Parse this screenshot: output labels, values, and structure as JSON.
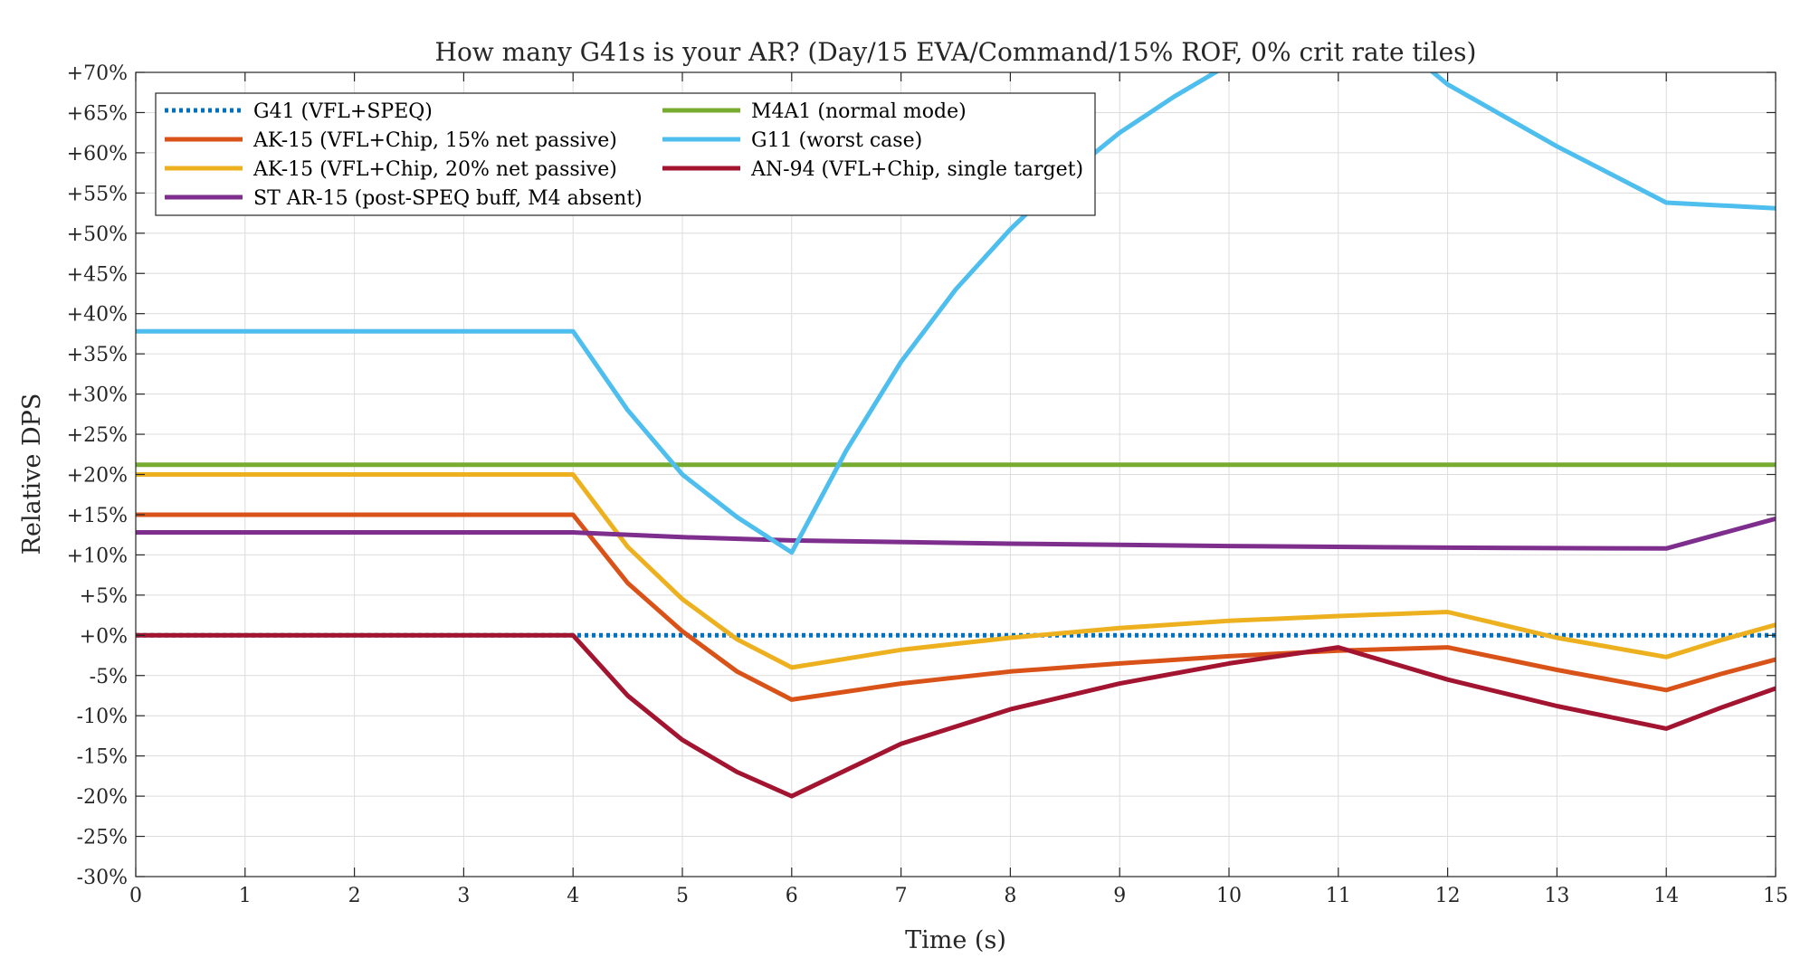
{
  "chart_data": {
    "type": "line",
    "title": "How many G41s is your AR? (Day/15 EVA/Command/15% ROF, 0% crit rate tiles)",
    "xlabel": "Time (s)",
    "ylabel": "Relative DPS",
    "xlim": [
      0,
      15
    ],
    "ylim": [
      -30,
      70
    ],
    "x_ticks": [
      0,
      1,
      2,
      3,
      4,
      5,
      6,
      7,
      8,
      9,
      10,
      11,
      12,
      13,
      14,
      15
    ],
    "x_tick_labels": [
      "0",
      "1",
      "2",
      "3",
      "4",
      "5",
      "6",
      "7",
      "8",
      "9",
      "10",
      "11",
      "12",
      "13",
      "14",
      "15"
    ],
    "y_ticks": [
      -30,
      -25,
      -20,
      -15,
      -10,
      -5,
      0,
      5,
      10,
      15,
      20,
      25,
      30,
      35,
      40,
      45,
      50,
      55,
      60,
      65,
      70
    ],
    "y_tick_labels": [
      "-30%",
      "-25%",
      "-20%",
      "-15%",
      "-10%",
      "-5%",
      "+0%",
      "+5%",
      "+10%",
      "+15%",
      "+20%",
      "+25%",
      "+30%",
      "+35%",
      "+40%",
      "+45%",
      "+50%",
      "+55%",
      "+60%",
      "+65%",
      "+70%"
    ],
    "grid": true,
    "legend_position": "top-left",
    "legend_columns": 2,
    "series": [
      {
        "name": "G41 (VFL+SPEQ)",
        "color": "#0072BD",
        "style": "dotted",
        "x": [
          0,
          15
        ],
        "y": [
          0,
          0
        ]
      },
      {
        "name": "AK-15 (VFL+Chip, 15% net passive)",
        "color": "#D95319",
        "style": "solid",
        "x": [
          0,
          4,
          4.5,
          5,
          5.5,
          6,
          7,
          8,
          9,
          10,
          11,
          12,
          13,
          14,
          14.5,
          15
        ],
        "y": [
          15,
          15,
          6.5,
          0.5,
          -4.5,
          -8,
          -6,
          -4.5,
          -3.5,
          -2.6,
          -1.9,
          -1.5,
          -4.3,
          -6.8,
          -4.8,
          -3
        ]
      },
      {
        "name": "AK-15 (VFL+Chip, 20% net passive)",
        "color": "#EDB120",
        "style": "solid",
        "x": [
          0,
          4,
          4.5,
          5,
          5.5,
          6,
          7,
          8,
          9,
          10,
          11,
          12,
          13,
          14,
          14.5,
          15
        ],
        "y": [
          20,
          20,
          11,
          4.5,
          -0.5,
          -4,
          -1.8,
          -0.3,
          0.9,
          1.8,
          2.4,
          2.9,
          -0.3,
          -2.7,
          -0.6,
          1.3
        ]
      },
      {
        "name": "ST AR-15 (post-SPEQ buff, M4 absent)",
        "color": "#7E2F8E",
        "style": "solid",
        "x": [
          0,
          4,
          5,
          6,
          8,
          10,
          12,
          14,
          15
        ],
        "y": [
          12.8,
          12.8,
          12.2,
          11.8,
          11.4,
          11.1,
          10.9,
          10.8,
          14.5
        ]
      },
      {
        "name": "M4A1 (normal mode)",
        "color": "#77AC30",
        "style": "solid",
        "x": [
          0,
          15
        ],
        "y": [
          21.2,
          21.2
        ]
      },
      {
        "name": "G11 (worst case)",
        "color": "#4DBEEE",
        "style": "solid",
        "x": [
          0,
          4,
          4.5,
          5,
          5.5,
          6,
          6.5,
          7,
          7.5,
          8,
          8.5,
          9,
          9.5,
          10,
          10.4,
          11.6,
          12,
          13,
          14,
          15
        ],
        "y": [
          37.8,
          37.8,
          28,
          20,
          14.7,
          10.3,
          23,
          34,
          43,
          50.5,
          57,
          62.5,
          67,
          71,
          73.5,
          73,
          68.5,
          60.8,
          53.8,
          53.1
        ]
      },
      {
        "name": "AN-94 (VFL+Chip, single target)",
        "color": "#A2142F",
        "style": "solid",
        "x": [
          0,
          4,
          4.5,
          5,
          5.5,
          6,
          7,
          8,
          9,
          10,
          11,
          12,
          13,
          14,
          14.5,
          15
        ],
        "y": [
          0,
          0,
          -7.5,
          -13,
          -17,
          -20,
          -13.5,
          -9.2,
          -6,
          -3.5,
          -1.5,
          -5.5,
          -8.8,
          -11.6,
          -9,
          -6.6
        ]
      }
    ]
  }
}
